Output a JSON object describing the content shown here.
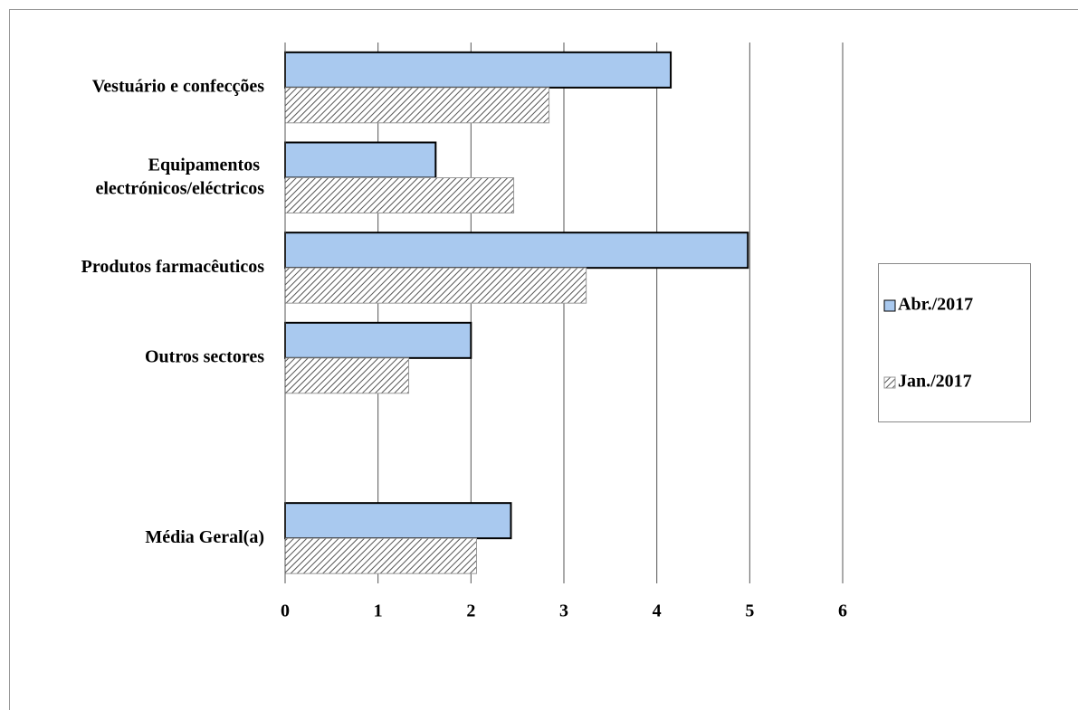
{
  "chart_data": {
    "type": "bar",
    "orientation": "horizontal",
    "categories": [
      "Vestuário e confecções",
      "Equipamentos electrónicos/eléctricos",
      "Produtos farmacêuticos",
      "Outros sectores",
      null,
      "Média Geral(a)"
    ],
    "series": [
      {
        "name": "Abr./2017",
        "color": "#a9c9ef",
        "values": [
          4.15,
          1.62,
          4.98,
          2.0,
          null,
          2.43
        ]
      },
      {
        "name": "Jan./2017",
        "color": "#7f7f7f",
        "hatch": true,
        "values": [
          2.84,
          2.46,
          3.24,
          1.33,
          null,
          2.06
        ]
      }
    ],
    "xlim": [
      0,
      6
    ],
    "xticks": [
      0,
      1,
      2,
      3,
      4,
      5,
      6
    ],
    "grid": true,
    "legend": "right"
  }
}
